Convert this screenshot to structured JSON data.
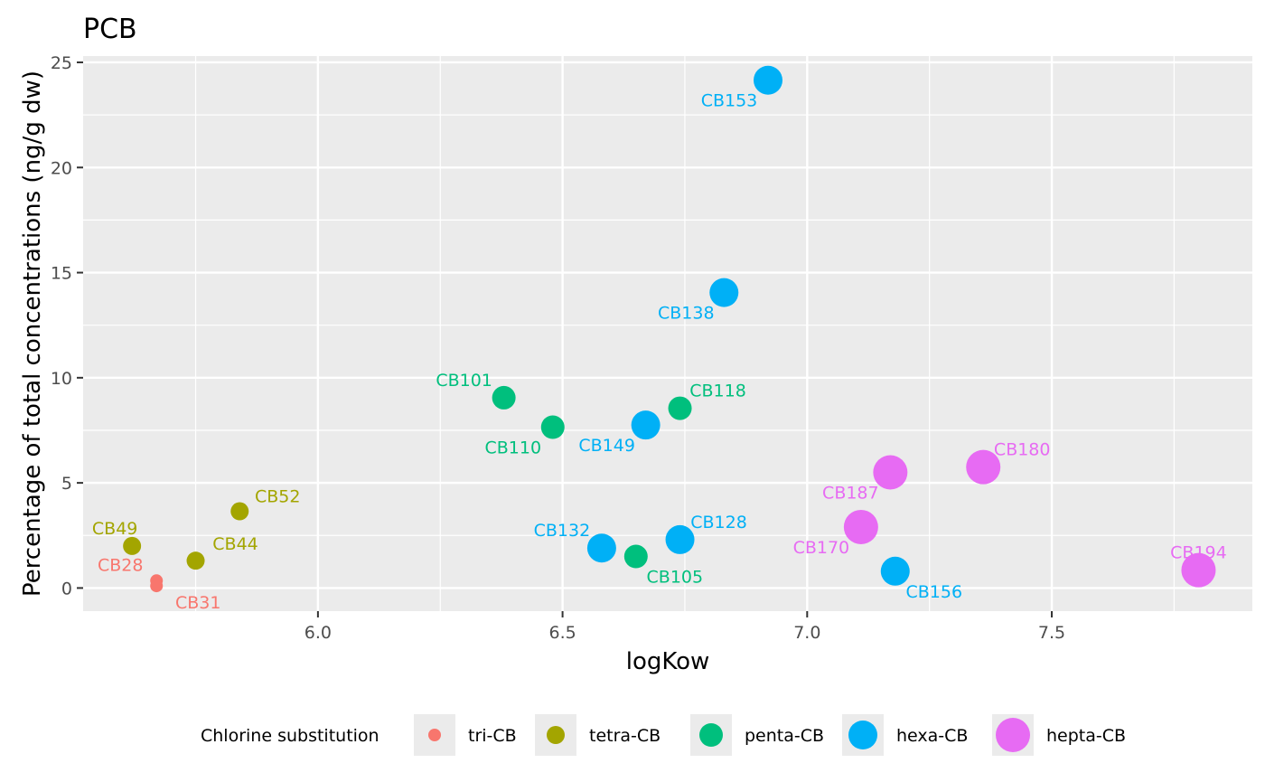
{
  "chart_data": {
    "type": "scatter",
    "title": "PCB",
    "xlabel": "logKow",
    "ylabel": "Percentage of total concentrations (ng/g dw)",
    "xlim": [
      5.52,
      7.91
    ],
    "ylim": [
      -1.1,
      25.3
    ],
    "x_ticks": [
      6.0,
      6.5,
      7.0,
      7.5
    ],
    "x_tick_labels": [
      "6.0",
      "6.5",
      "7.0",
      "7.5"
    ],
    "y_ticks": [
      0,
      5,
      10,
      15,
      20,
      25
    ],
    "y_tick_labels": [
      "0",
      "5",
      "10",
      "15",
      "20",
      "25"
    ],
    "grid": true,
    "legend": {
      "position": "bottom",
      "title": "Chlorine substitution",
      "entries": [
        {
          "label": "tri-CB",
          "color": "#F8766D",
          "size_rank": 1
        },
        {
          "label": "tetra-CB",
          "color": "#A3A500",
          "size_rank": 2
        },
        {
          "label": "penta-CB",
          "color": "#00BF7D",
          "size_rank": 3
        },
        {
          "label": "hexa-CB",
          "color": "#00B0F6",
          "size_rank": 4
        },
        {
          "label": "hepta-CB",
          "color": "#E76BF3",
          "size_rank": 5
        }
      ]
    },
    "points": [
      {
        "label": "CB28",
        "x": 5.67,
        "y": 0.35,
        "group": "tri-CB"
      },
      {
        "label": "CB31",
        "x": 5.67,
        "y": 0.1,
        "group": "tri-CB"
      },
      {
        "label": "CB49",
        "x": 5.62,
        "y": 2.0,
        "group": "tetra-CB"
      },
      {
        "label": "CB44",
        "x": 5.75,
        "y": 1.3,
        "group": "tetra-CB"
      },
      {
        "label": "CB52",
        "x": 5.84,
        "y": 3.65,
        "group": "tetra-CB"
      },
      {
        "label": "CB101",
        "x": 6.38,
        "y": 9.05,
        "group": "penta-CB"
      },
      {
        "label": "CB110",
        "x": 6.48,
        "y": 7.65,
        "group": "penta-CB"
      },
      {
        "label": "CB118",
        "x": 6.74,
        "y": 8.55,
        "group": "penta-CB"
      },
      {
        "label": "CB105",
        "x": 6.65,
        "y": 1.5,
        "group": "penta-CB"
      },
      {
        "label": "CB153",
        "x": 6.92,
        "y": 24.15,
        "group": "hexa-CB"
      },
      {
        "label": "CB138",
        "x": 6.83,
        "y": 14.05,
        "group": "hexa-CB"
      },
      {
        "label": "CB149",
        "x": 6.67,
        "y": 7.75,
        "group": "hexa-CB"
      },
      {
        "label": "CB132",
        "x": 6.58,
        "y": 1.9,
        "group": "hexa-CB"
      },
      {
        "label": "CB128",
        "x": 6.74,
        "y": 2.3,
        "group": "hexa-CB"
      },
      {
        "label": "CB156",
        "x": 7.18,
        "y": 0.8,
        "group": "hexa-CB"
      },
      {
        "label": "CB180",
        "x": 7.36,
        "y": 5.75,
        "group": "hepta-CB"
      },
      {
        "label": "CB187",
        "x": 7.17,
        "y": 5.5,
        "group": "hepta-CB"
      },
      {
        "label": "CB170",
        "x": 7.11,
        "y": 2.9,
        "group": "hepta-CB"
      },
      {
        "label": "CB194",
        "x": 7.8,
        "y": 0.85,
        "group": "hepta-CB"
      }
    ]
  }
}
